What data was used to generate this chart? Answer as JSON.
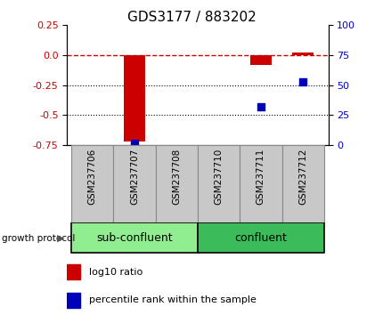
{
  "title": "GDS3177 / 883202",
  "samples": [
    "GSM237706",
    "GSM237707",
    "GSM237708",
    "GSM237710",
    "GSM237711",
    "GSM237712"
  ],
  "log10_ratio": [
    0.0,
    -0.72,
    0.0,
    0.0,
    -0.08,
    0.02
  ],
  "percentile_rank": [
    null,
    1.5,
    null,
    null,
    32.0,
    53.0
  ],
  "ylim_left": [
    -0.75,
    0.25
  ],
  "ylim_right": [
    0,
    100
  ],
  "yticks_left": [
    0.25,
    0.0,
    -0.25,
    -0.5,
    -0.75
  ],
  "yticks_right": [
    100,
    75,
    50,
    25,
    0
  ],
  "bar_color": "#CC0000",
  "dot_color": "#0000BB",
  "bar_width": 0.5,
  "dot_size": 35,
  "legend_bar_label": "log10 ratio",
  "legend_dot_label": "percentile rank within the sample",
  "growth_protocol_label": "growth protocol",
  "group_label_fontsize": 9,
  "tick_fontsize": 8,
  "title_fontsize": 11,
  "sample_box_color": "#C8C8C8",
  "sample_box_edge": "#888888",
  "sub_confluent_color": "#90EE90",
  "confluent_color": "#3CBB5A"
}
